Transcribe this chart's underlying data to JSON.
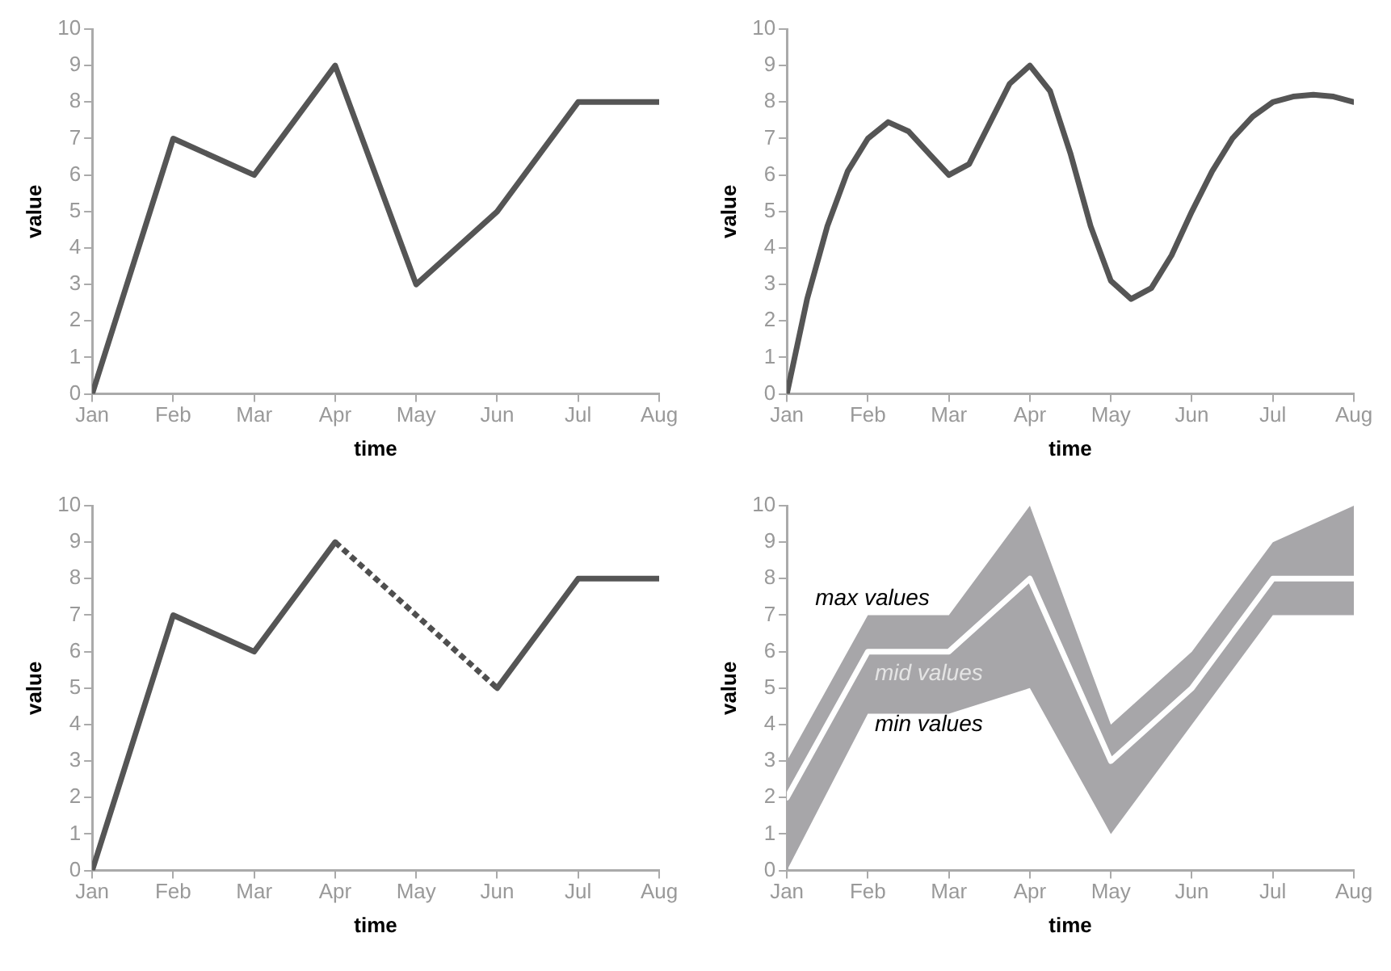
{
  "chart_data": [
    {
      "type": "line",
      "categories": [
        "Jan",
        "Feb",
        "Mar",
        "Apr",
        "May",
        "Jun",
        "Jul",
        "Aug"
      ],
      "xlabel": "time",
      "ylabel": "value",
      "ylim": [
        0,
        10
      ],
      "yticks": [
        0,
        1,
        2,
        3,
        4,
        5,
        6,
        7,
        8,
        9,
        10
      ],
      "grid": false,
      "legend": false,
      "marker": "none",
      "series": [
        {
          "color": "#555555",
          "values": [
            0,
            7,
            6,
            9,
            3,
            5,
            8,
            8
          ]
        }
      ]
    },
    {
      "type": "line",
      "categories": [
        "Jan",
        null,
        null,
        null,
        "Feb",
        null,
        null,
        null,
        "Mar",
        null,
        null,
        null,
        "Apr",
        null,
        null,
        null,
        "May",
        null,
        null,
        null,
        "Jun",
        null,
        null,
        null,
        "Jul",
        null,
        null,
        null,
        "Aug"
      ],
      "xlabel": "time",
      "ylabel": "value",
      "ylim": [
        0,
        10
      ],
      "yticks": [
        0,
        1,
        2,
        3,
        4,
        5,
        6,
        7,
        8,
        9,
        10
      ],
      "grid": false,
      "legend": false,
      "marker": "none",
      "series": [
        {
          "color": "#555555",
          "values": [
            0,
            2.6,
            4.6,
            6.1,
            7,
            7.45,
            7.2,
            6.6,
            6,
            6.3,
            7.4,
            8.5,
            9,
            8.3,
            6.6,
            4.6,
            3.1,
            2.6,
            2.9,
            3.8,
            5,
            6.1,
            7,
            7.6,
            8,
            8.15,
            8.2,
            8.15,
            8
          ]
        }
      ]
    },
    {
      "type": "line",
      "categories": [
        "Jan",
        "Feb",
        "Mar",
        "Apr",
        "May",
        "Jun",
        "Jul",
        "Aug"
      ],
      "xlabel": "time",
      "ylabel": "value",
      "ylim": [
        0,
        10
      ],
      "yticks": [
        0,
        1,
        2,
        3,
        4,
        5,
        6,
        7,
        8,
        9,
        10
      ],
      "grid": false,
      "legend": false,
      "marker": "none",
      "series": [
        {
          "color": "#555555",
          "line_style": "solid",
          "values": [
            0,
            7,
            6,
            9,
            null,
            5,
            8,
            8
          ]
        },
        {
          "color": "#4f4f4f",
          "line_style": "dotted",
          "values": [
            null,
            null,
            null,
            9,
            7,
            5,
            null,
            null
          ]
        }
      ]
    },
    {
      "type": "line",
      "categories": [
        "Jan",
        "Feb",
        "Mar",
        "Apr",
        "May",
        "Jun",
        "Jul",
        "Aug"
      ],
      "xlabel": "time",
      "ylabel": "value",
      "ylim": [
        0,
        10
      ],
      "yticks": [
        0,
        1,
        2,
        3,
        4,
        5,
        6,
        7,
        8,
        9,
        10
      ],
      "grid": false,
      "legend": false,
      "marker": "none",
      "series": [
        {
          "color": "#ffffff",
          "values": [
            2,
            6,
            6,
            8,
            3,
            5,
            8,
            8
          ],
          "lower": [
            0,
            4.3,
            4.3,
            5,
            1,
            4,
            7,
            7
          ],
          "upper": [
            3,
            7,
            7,
            10,
            4,
            6,
            9,
            10
          ]
        }
      ],
      "annotations": [
        "max values",
        "mid values",
        "min values"
      ]
    }
  ]
}
